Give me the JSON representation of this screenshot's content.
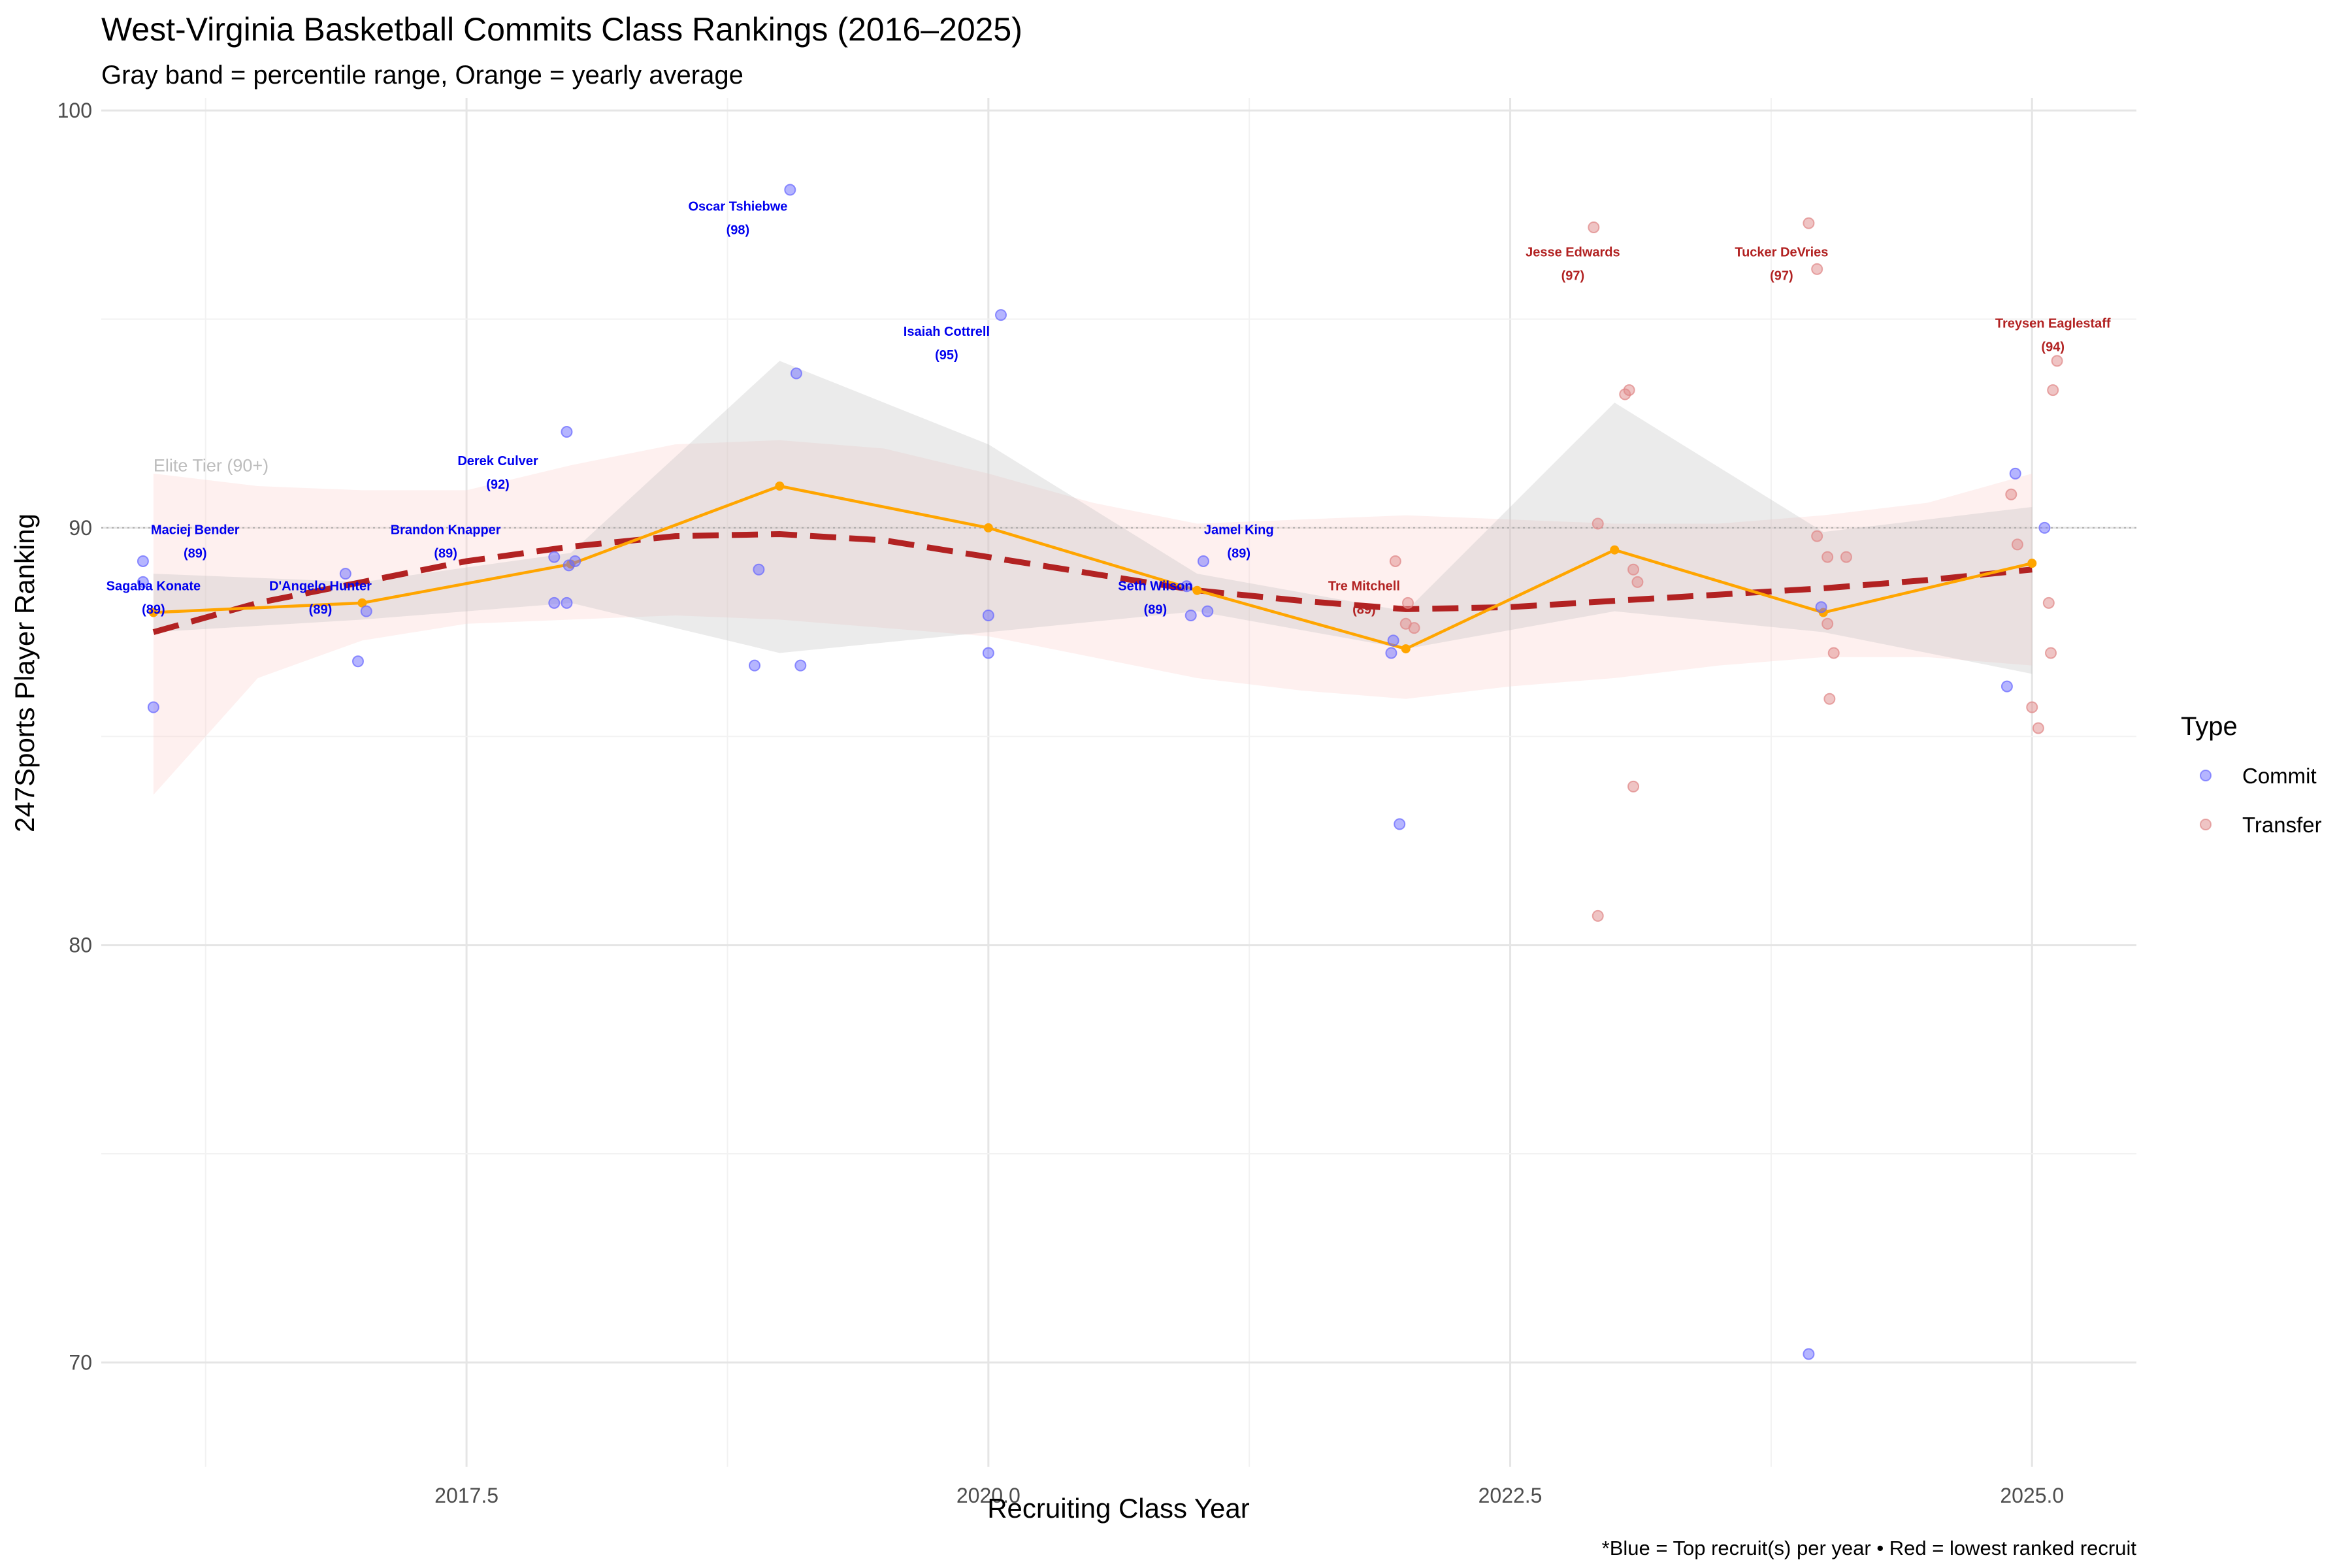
{
  "chart_data": {
    "type": "scatter",
    "title": "West-Virginia Basketball Commits Class Rankings (2016–2025)",
    "subtitle": "Gray band = percentile range, Orange = yearly average",
    "xlabel": "Recruiting Class Year",
    "ylabel": "247Sports Player Ranking",
    "caption": "*Blue = Top recruit(s) per year • Red = lowest ranked recruit",
    "xlim": [
      2015.75,
      2025.5
    ],
    "ylim": [
      67.5,
      100.3
    ],
    "x_ticks": [
      2017.5,
      2020.0,
      2022.5,
      2025.0
    ],
    "x_tick_labels": [
      "2017.5",
      "2020.0",
      "2022.5",
      "2025.0"
    ],
    "y_ticks": [
      70,
      80,
      90,
      100
    ],
    "y_tick_labels": [
      "70",
      "80",
      "90",
      "100"
    ],
    "grid": true,
    "reference_line": {
      "y": 90,
      "label": "Elite Tier (90+)"
    },
    "legend": {
      "title": "Type",
      "placement": "right",
      "entries": [
        {
          "label": "Commit",
          "color": "#6b6bff"
        },
        {
          "label": "Transfer",
          "color": "#e08a8a"
        }
      ]
    },
    "colors": {
      "commit": "#6b6bff",
      "transfer": "#e08a8a",
      "average": "#ffa500",
      "trend": "#b22222",
      "band": "#bebebe",
      "ribbon": "#fcd5d0",
      "commit_label": "#0000ee",
      "transfer_label": "#b22222"
    },
    "series": [
      {
        "name": "Commit",
        "points": [
          {
            "x": 2015.95,
            "y": 89.2
          },
          {
            "x": 2015.95,
            "y": 88.7
          },
          {
            "x": 2016.0,
            "y": 85.7
          },
          {
            "x": 2016.92,
            "y": 88.9
          },
          {
            "x": 2016.98,
            "y": 86.8
          },
          {
            "x": 2017.02,
            "y": 88.0
          },
          {
            "x": 2017.92,
            "y": 89.3
          },
          {
            "x": 2017.92,
            "y": 88.2
          },
          {
            "x": 2017.98,
            "y": 88.2
          },
          {
            "x": 2017.98,
            "y": 92.3
          },
          {
            "x": 2017.99,
            "y": 89.1
          },
          {
            "x": 2018.02,
            "y": 89.2
          },
          {
            "x": 2018.88,
            "y": 86.7
          },
          {
            "x": 2018.9,
            "y": 89.0
          },
          {
            "x": 2019.05,
            "y": 98.1
          },
          {
            "x": 2019.08,
            "y": 93.7
          },
          {
            "x": 2019.1,
            "y": 86.7
          },
          {
            "x": 2020.0,
            "y": 87.9
          },
          {
            "x": 2020.0,
            "y": 87.0
          },
          {
            "x": 2020.06,
            "y": 95.1
          },
          {
            "x": 2020.95,
            "y": 88.6
          },
          {
            "x": 2020.97,
            "y": 87.9
          },
          {
            "x": 2021.03,
            "y": 89.2
          },
          {
            "x": 2021.05,
            "y": 88.0
          },
          {
            "x": 2021.93,
            "y": 87.0
          },
          {
            "x": 2021.94,
            "y": 87.3
          },
          {
            "x": 2021.97,
            "y": 82.9
          },
          {
            "x": 2023.93,
            "y": 70.2
          },
          {
            "x": 2023.99,
            "y": 88.1
          },
          {
            "x": 2024.88,
            "y": 86.2
          },
          {
            "x": 2024.92,
            "y": 91.3
          },
          {
            "x": 2025.06,
            "y": 90.0
          }
        ]
      },
      {
        "name": "Transfer",
        "points": [
          {
            "x": 2021.95,
            "y": 89.2
          },
          {
            "x": 2022.0,
            "y": 87.7
          },
          {
            "x": 2022.01,
            "y": 88.2
          },
          {
            "x": 2022.04,
            "y": 87.6
          },
          {
            "x": 2022.9,
            "y": 97.2
          },
          {
            "x": 2022.92,
            "y": 90.1
          },
          {
            "x": 2022.92,
            "y": 80.7
          },
          {
            "x": 2023.05,
            "y": 93.2
          },
          {
            "x": 2023.07,
            "y": 93.3
          },
          {
            "x": 2023.09,
            "y": 89.0
          },
          {
            "x": 2023.11,
            "y": 88.7
          },
          {
            "x": 2023.09,
            "y": 83.8
          },
          {
            "x": 2023.93,
            "y": 97.3
          },
          {
            "x": 2023.97,
            "y": 96.2
          },
          {
            "x": 2023.97,
            "y": 89.8
          },
          {
            "x": 2024.02,
            "y": 89.3
          },
          {
            "x": 2024.02,
            "y": 87.7
          },
          {
            "x": 2024.03,
            "y": 85.9
          },
          {
            "x": 2024.05,
            "y": 87.0
          },
          {
            "x": 2024.11,
            "y": 89.3
          },
          {
            "x": 2024.9,
            "y": 90.8
          },
          {
            "x": 2024.93,
            "y": 89.6
          },
          {
            "x": 2025.0,
            "y": 85.7
          },
          {
            "x": 2025.03,
            "y": 85.2
          },
          {
            "x": 2025.08,
            "y": 88.2
          },
          {
            "x": 2025.09,
            "y": 87.0
          },
          {
            "x": 2025.1,
            "y": 93.3
          },
          {
            "x": 2025.12,
            "y": 94.0
          }
        ]
      }
    ],
    "yearly_average": [
      {
        "x": 2016,
        "y": 87.97
      },
      {
        "x": 2017,
        "y": 88.2
      },
      {
        "x": 2018,
        "y": 89.13
      },
      {
        "x": 2019,
        "y": 91.0
      },
      {
        "x": 2020,
        "y": 90.0
      },
      {
        "x": 2021,
        "y": 88.5
      },
      {
        "x": 2022,
        "y": 87.1
      },
      {
        "x": 2023,
        "y": 89.47
      },
      {
        "x": 2024,
        "y": 87.97
      },
      {
        "x": 2025,
        "y": 89.15
      }
    ],
    "percentile_band": [
      {
        "x": 2016,
        "lo": 87.5,
        "hi": 88.9
      },
      {
        "x": 2017,
        "lo": 87.8,
        "hi": 88.7
      },
      {
        "x": 2018,
        "lo": 88.2,
        "hi": 89.4
      },
      {
        "x": 2019,
        "lo": 87.0,
        "hi": 94.0
      },
      {
        "x": 2020,
        "lo": 87.5,
        "hi": 92.0
      },
      {
        "x": 2021,
        "lo": 88.0,
        "hi": 88.9
      },
      {
        "x": 2022,
        "lo": 87.1,
        "hi": 88.0
      },
      {
        "x": 2023,
        "lo": 88.0,
        "hi": 93.0
      },
      {
        "x": 2024,
        "lo": 87.5,
        "hi": 89.9
      },
      {
        "x": 2025,
        "lo": 86.5,
        "hi": 90.5
      }
    ],
    "trend_line": [
      {
        "x": 2016,
        "y": 87.5
      },
      {
        "x": 2016.5,
        "y": 88.2
      },
      {
        "x": 2017,
        "y": 88.7
      },
      {
        "x": 2017.5,
        "y": 89.2
      },
      {
        "x": 2018,
        "y": 89.55
      },
      {
        "x": 2018.5,
        "y": 89.8
      },
      {
        "x": 2019,
        "y": 89.85
      },
      {
        "x": 2019.5,
        "y": 89.7
      },
      {
        "x": 2020,
        "y": 89.3
      },
      {
        "x": 2020.5,
        "y": 88.9
      },
      {
        "x": 2021,
        "y": 88.5
      },
      {
        "x": 2021.5,
        "y": 88.25
      },
      {
        "x": 2022,
        "y": 88.05
      },
      {
        "x": 2022.5,
        "y": 88.1
      },
      {
        "x": 2023,
        "y": 88.25
      },
      {
        "x": 2023.5,
        "y": 88.4
      },
      {
        "x": 2024,
        "y": 88.55
      },
      {
        "x": 2024.5,
        "y": 88.75
      },
      {
        "x": 2025,
        "y": 89.0
      }
    ],
    "trend_ribbon": [
      {
        "x": 2016,
        "lo": 83.6,
        "hi": 91.3
      },
      {
        "x": 2016.5,
        "lo": 86.4,
        "hi": 91.0
      },
      {
        "x": 2017,
        "lo": 87.3,
        "hi": 90.9
      },
      {
        "x": 2017.5,
        "lo": 87.7,
        "hi": 90.9
      },
      {
        "x": 2018,
        "lo": 87.8,
        "hi": 91.5
      },
      {
        "x": 2018.5,
        "lo": 87.9,
        "hi": 92.0
      },
      {
        "x": 2019,
        "lo": 87.8,
        "hi": 92.1
      },
      {
        "x": 2019.5,
        "lo": 87.6,
        "hi": 91.9
      },
      {
        "x": 2020,
        "lo": 87.4,
        "hi": 91.3
      },
      {
        "x": 2020.5,
        "lo": 86.9,
        "hi": 90.6
      },
      {
        "x": 2021,
        "lo": 86.4,
        "hi": 90.1
      },
      {
        "x": 2021.5,
        "lo": 86.1,
        "hi": 90.2
      },
      {
        "x": 2022,
        "lo": 85.9,
        "hi": 90.3
      },
      {
        "x": 2022.5,
        "lo": 86.2,
        "hi": 90.2
      },
      {
        "x": 2023,
        "lo": 86.4,
        "hi": 90.1
      },
      {
        "x": 2023.5,
        "lo": 86.7,
        "hi": 90.1
      },
      {
        "x": 2024,
        "lo": 86.9,
        "hi": 90.3
      },
      {
        "x": 2024.5,
        "lo": 86.9,
        "hi": 90.6
      },
      {
        "x": 2025,
        "lo": 86.7,
        "hi": 91.3
      }
    ],
    "annotations": [
      {
        "name": "Sagaba Konate",
        "value": "(89)",
        "x": 2016.0,
        "y": 88.5,
        "type": "Commit"
      },
      {
        "name": "Maciej Bender",
        "value": "(89)",
        "x": 2016.2,
        "y": 89.85,
        "type": "Commit"
      },
      {
        "name": "D'Angelo Hunter",
        "value": "(89)",
        "x": 2016.8,
        "y": 88.5,
        "type": "Commit"
      },
      {
        "name": "Brandon Knapper",
        "value": "(89)",
        "x": 2017.4,
        "y": 89.85,
        "type": "Commit"
      },
      {
        "name": "Derek Culver",
        "value": "(92)",
        "x": 2017.65,
        "y": 91.5,
        "type": "Commit"
      },
      {
        "name": "Oscar Tshiebwe",
        "value": "(98)",
        "x": 2018.8,
        "y": 97.6,
        "type": "Commit"
      },
      {
        "name": "Isaiah Cottrell",
        "value": "(95)",
        "x": 2019.8,
        "y": 94.6,
        "type": "Commit"
      },
      {
        "name": "Seth Wilson",
        "value": "(89)",
        "x": 2020.8,
        "y": 88.5,
        "type": "Commit"
      },
      {
        "name": "Jamel King",
        "value": "(89)",
        "x": 2021.2,
        "y": 89.85,
        "type": "Commit"
      },
      {
        "name": "Tre Mitchell",
        "value": "(89)",
        "x": 2021.8,
        "y": 88.5,
        "type": "Transfer"
      },
      {
        "name": "Jesse Edwards",
        "value": "(97)",
        "x": 2022.8,
        "y": 96.5,
        "type": "Transfer"
      },
      {
        "name": "Tucker DeVries",
        "value": "(97)",
        "x": 2023.8,
        "y": 96.5,
        "type": "Transfer"
      },
      {
        "name": "Treysen Eaglestaff",
        "value": "(94)",
        "x": 2025.1,
        "y": 94.8,
        "type": "Transfer"
      }
    ]
  }
}
